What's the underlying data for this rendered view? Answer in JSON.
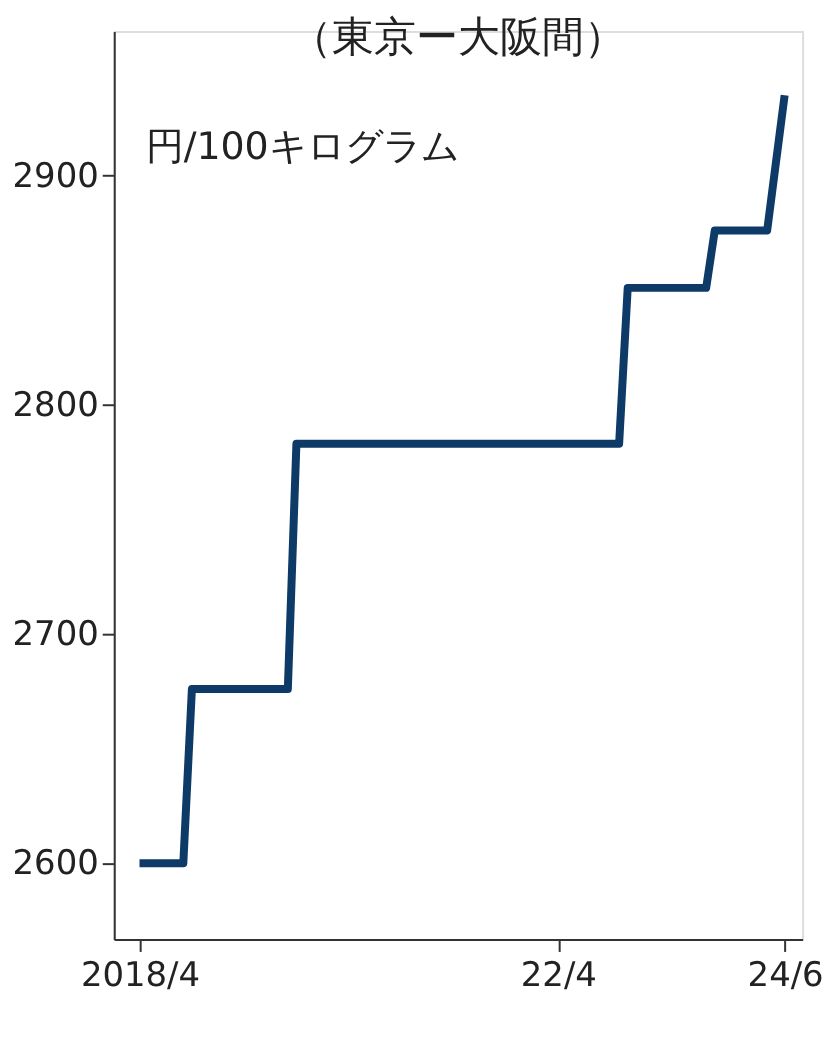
{
  "chart_data": {
    "type": "line",
    "subtitle": "（東京ー大阪間）",
    "ylabel": "円/100キログラム",
    "x": [
      "2018-04",
      "2018-09",
      "2018-10",
      "2019-09",
      "2019-10",
      "2022-11",
      "2022-12",
      "2023-09",
      "2023-10",
      "2024-04",
      "2024-06"
    ],
    "series": [
      {
        "color": "#0d3a66",
        "values": [
          2600,
          2600,
          2676,
          2676,
          2783,
          2783,
          2851,
          2851,
          2876,
          2876,
          2935
        ]
      }
    ],
    "xlim": [
      "2018-01",
      "2024-08"
    ],
    "xticks": [
      {
        "value": "2018-04",
        "label": "2018/4"
      },
      {
        "value": "2022-04",
        "label": "22/4"
      },
      {
        "value": "2024-06",
        "label": "24/6"
      }
    ],
    "ylim": [
      2567,
      2963
    ],
    "yticks": [
      2600,
      2700,
      2800,
      2900
    ],
    "grid": false,
    "marker": "none",
    "line_style": "solid"
  }
}
